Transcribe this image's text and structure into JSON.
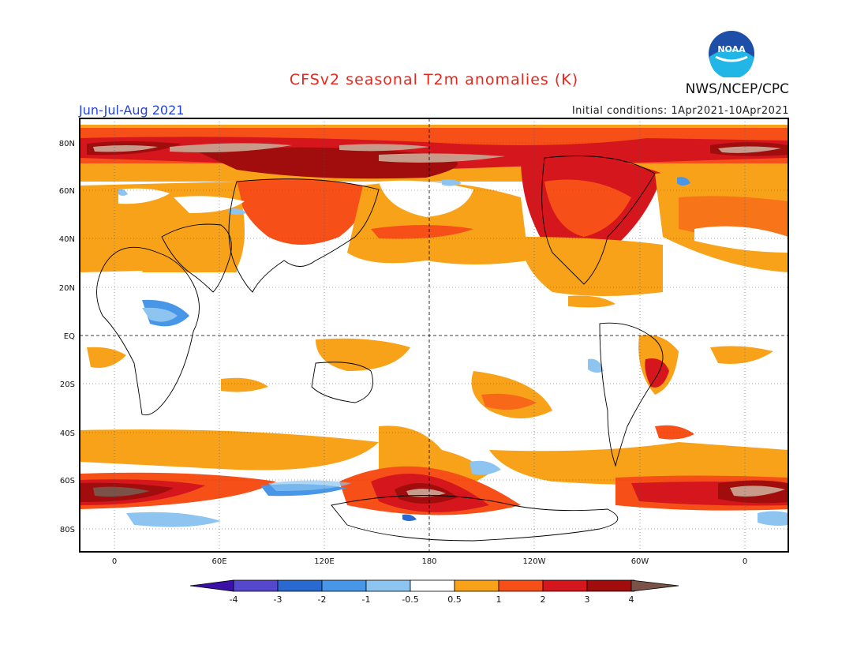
{
  "header": {
    "title": "CFSv2 seasonal T2m anomalies (K)",
    "period": "Jun-Jul-Aug 2021",
    "initial_conditions": "Initial conditions: 1Apr2021-10Apr2021",
    "agency": "NWS/NCEP/CPC",
    "logo_text": "NOAA"
  },
  "map": {
    "lat_labels": [
      "80N",
      "60N",
      "40N",
      "20N",
      "EQ",
      "20S",
      "40S",
      "60S",
      "80S"
    ],
    "lon_labels": [
      "0",
      "60E",
      "120E",
      "180",
      "120W",
      "60W",
      "0"
    ]
  },
  "colorbar": {
    "labels": [
      "-4",
      "-3",
      "-2",
      "-1",
      "-0.5",
      "0.5",
      "1",
      "2",
      "3",
      "4"
    ],
    "colors": [
      "#3b10a8",
      "#5548cf",
      "#2a6ad0",
      "#4896e8",
      "#8dc4f0",
      "#ffffff",
      "#f8a21a",
      "#f65018",
      "#d5161c",
      "#a10d0d",
      "#c79a8a",
      "#7a5248"
    ]
  }
}
